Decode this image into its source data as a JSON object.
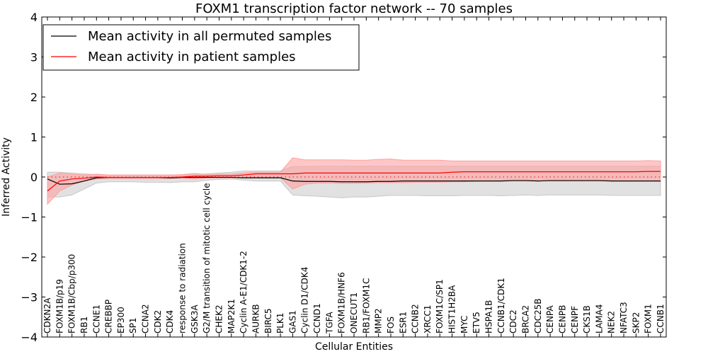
{
  "chart_data": {
    "type": "line",
    "title": "FOXM1 transcription factor network -- 70 samples",
    "xlabel": "Cellular Entities",
    "ylabel": "Inferred Activity",
    "ylim": [
      -4,
      4
    ],
    "yticks": [
      -4,
      -3,
      -2,
      -1,
      0,
      1,
      2,
      3,
      4
    ],
    "ytick_labels": [
      "−4",
      "−3",
      "−2",
      "−1",
      "0",
      "1",
      "2",
      "3",
      "4"
    ],
    "grid": false,
    "legend_position": "top-left",
    "categories": [
      "CDKN2A",
      "FOXM1B/p19",
      "FOXM1B/Cbp/p300",
      "RB1",
      "CCNE1",
      "CREBBP",
      "EP300",
      "SP1",
      "CCNA2",
      "CDK2",
      "CDK4",
      "response to radiation",
      "GSK3A",
      "G2/M transition of mitotic cell cycle",
      "CHEK2",
      "MAP2K1",
      "Cyclin A-E1/CDK1-2",
      "AURKB",
      "BIRC5",
      "PLK1",
      "GAS1",
      "Cyclin D1/CDK4",
      "CCND1",
      "TGFA",
      "FOXM1B/HNF6",
      "ONECUT1",
      "RB1/FOXM1C",
      "MMP2",
      "FOS",
      "ESR1",
      "CCNB2",
      "XRCC1",
      "FOXM1C/SP1",
      "HIST1H2BA",
      "MYC",
      "ETV5",
      "HSPA1B",
      "CCNB1/CDK1",
      "CDC2",
      "BRCA2",
      "CDC25B",
      "CENPA",
      "CENPB",
      "CENPF",
      "CKS1B",
      "LAMA4",
      "NEK2",
      "NFATC3",
      "SKP2",
      "FOXM1",
      "CCNB1"
    ],
    "series": [
      {
        "name": "Mean activity in all permuted samples",
        "color": "#000000",
        "band_color": "#c8c8c8",
        "values": [
          -0.05,
          -0.18,
          -0.17,
          -0.1,
          -0.02,
          -0.01,
          -0.01,
          -0.01,
          -0.01,
          -0.01,
          -0.02,
          -0.01,
          -0.01,
          -0.01,
          -0.01,
          -0.01,
          -0.02,
          -0.02,
          -0.02,
          -0.02,
          -0.1,
          -0.11,
          -0.11,
          -0.11,
          -0.12,
          -0.12,
          -0.12,
          -0.11,
          -0.11,
          -0.1,
          -0.1,
          -0.1,
          -0.1,
          -0.1,
          -0.1,
          -0.1,
          -0.1,
          -0.1,
          -0.09,
          -0.09,
          -0.1,
          -0.09,
          -0.09,
          -0.09,
          -0.09,
          -0.09,
          -0.1,
          -0.1,
          -0.1,
          -0.1,
          -0.1
        ],
        "lower": [
          -0.5,
          -0.5,
          -0.45,
          -0.3,
          -0.15,
          -0.12,
          -0.12,
          -0.12,
          -0.13,
          -0.13,
          -0.14,
          -0.12,
          -0.12,
          -0.08,
          -0.06,
          -0.05,
          -0.08,
          -0.1,
          -0.1,
          -0.1,
          -0.45,
          -0.47,
          -0.48,
          -0.5,
          -0.52,
          -0.5,
          -0.5,
          -0.48,
          -0.46,
          -0.46,
          -0.46,
          -0.47,
          -0.47,
          -0.47,
          -0.46,
          -0.46,
          -0.46,
          -0.47,
          -0.46,
          -0.45,
          -0.46,
          -0.45,
          -0.45,
          -0.45,
          -0.45,
          -0.45,
          -0.46,
          -0.46,
          -0.46,
          -0.46,
          -0.46
        ],
        "upper": [
          0.12,
          0.12,
          0.1,
          0.08,
          0.06,
          0.05,
          0.05,
          0.05,
          0.05,
          0.05,
          0.05,
          0.05,
          0.06,
          0.08,
          0.1,
          0.12,
          0.15,
          0.15,
          0.15,
          0.15,
          0.26,
          0.26,
          0.27,
          0.27,
          0.27,
          0.27,
          0.27,
          0.27,
          0.27,
          0.27,
          0.27,
          0.27,
          0.27,
          0.27,
          0.27,
          0.27,
          0.27,
          0.27,
          0.27,
          0.27,
          0.27,
          0.27,
          0.27,
          0.27,
          0.27,
          0.27,
          0.27,
          0.27,
          0.27,
          0.27,
          0.27
        ]
      },
      {
        "name": "Mean activity in patient samples",
        "color": "#ff0000",
        "band_color": "#ffa0a0",
        "values": [
          -0.35,
          -0.1,
          -0.05,
          -0.03,
          0.0,
          -0.01,
          -0.01,
          -0.01,
          -0.01,
          -0.01,
          -0.01,
          0.0,
          0.02,
          0.02,
          0.03,
          0.03,
          0.05,
          0.08,
          0.08,
          0.08,
          0.08,
          0.1,
          0.1,
          0.1,
          0.1,
          0.1,
          0.1,
          0.1,
          0.1,
          0.1,
          0.1,
          0.1,
          0.1,
          0.12,
          0.13,
          0.13,
          0.13,
          0.13,
          0.13,
          0.13,
          0.13,
          0.13,
          0.13,
          0.13,
          0.13,
          0.13,
          0.13,
          0.13,
          0.13,
          0.14,
          0.14
        ],
        "lower": [
          -0.68,
          -0.35,
          -0.2,
          -0.1,
          -0.05,
          -0.04,
          -0.04,
          -0.04,
          -0.04,
          -0.04,
          -0.04,
          -0.03,
          -0.05,
          -0.02,
          -0.02,
          -0.02,
          -0.02,
          -0.02,
          -0.02,
          -0.02,
          -0.3,
          -0.18,
          -0.15,
          -0.15,
          -0.16,
          -0.16,
          -0.15,
          -0.14,
          -0.14,
          -0.14,
          -0.13,
          -0.13,
          -0.13,
          -0.12,
          -0.12,
          -0.1,
          -0.1,
          -0.1,
          -0.1,
          -0.1,
          -0.1,
          -0.1,
          -0.1,
          -0.1,
          -0.1,
          -0.1,
          -0.1,
          -0.1,
          -0.1,
          -0.1,
          -0.1
        ],
        "upper": [
          0.0,
          0.1,
          0.07,
          0.05,
          0.07,
          0.05,
          0.05,
          0.05,
          0.05,
          0.05,
          0.05,
          0.06,
          0.09,
          0.06,
          0.07,
          0.07,
          0.1,
          0.12,
          0.12,
          0.12,
          0.48,
          0.43,
          0.43,
          0.43,
          0.43,
          0.42,
          0.42,
          0.44,
          0.45,
          0.42,
          0.42,
          0.42,
          0.42,
          0.4,
          0.4,
          0.4,
          0.4,
          0.4,
          0.4,
          0.4,
          0.4,
          0.4,
          0.4,
          0.4,
          0.4,
          0.4,
          0.4,
          0.4,
          0.4,
          0.41,
          0.4
        ]
      }
    ]
  }
}
